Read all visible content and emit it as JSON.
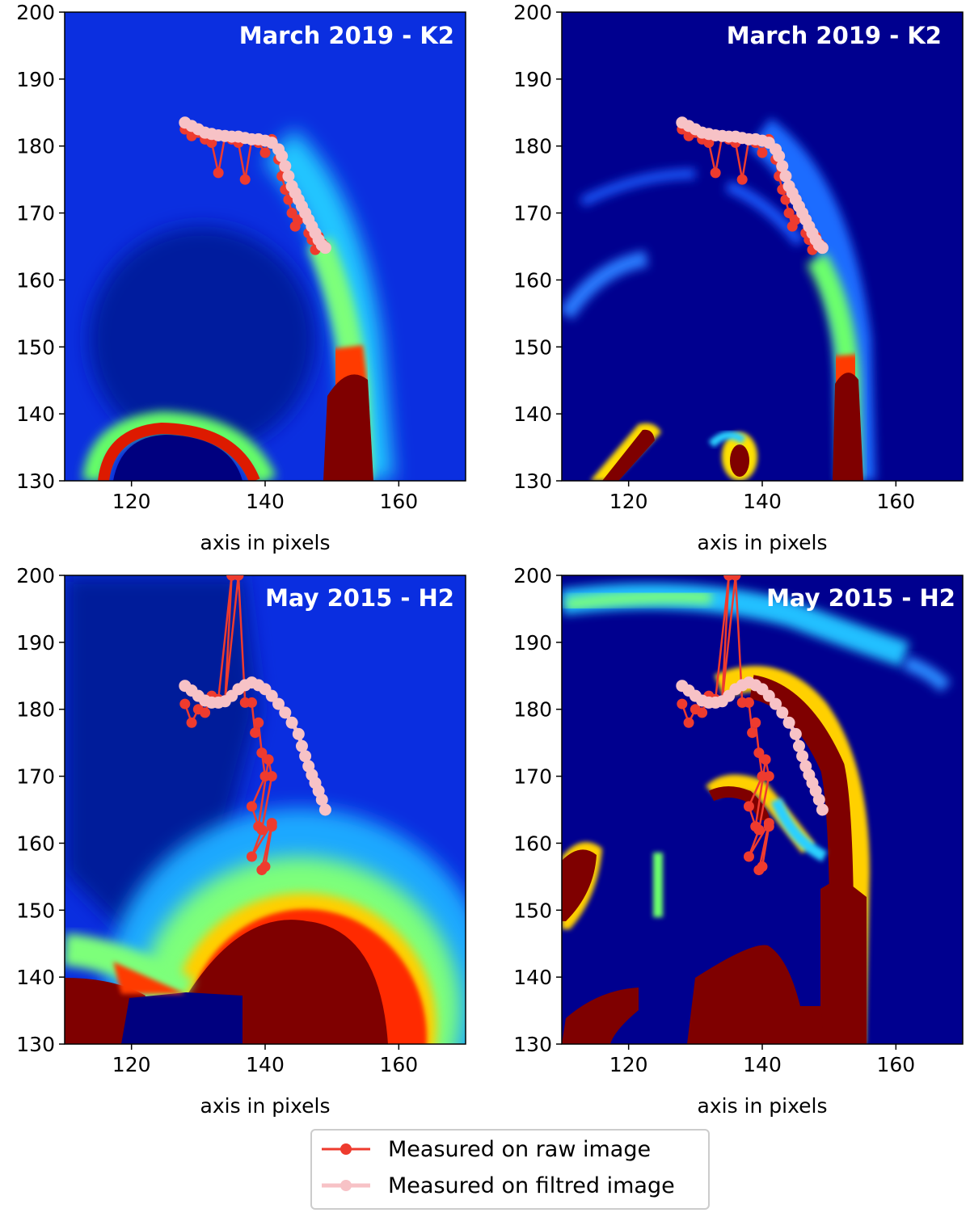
{
  "chart_data": [
    {
      "type": "heatmap",
      "title": "March 2019 - K2",
      "image": "raw",
      "xlabel": "axis in pixels",
      "xlim": [
        110,
        170
      ],
      "ylim": [
        130,
        200
      ],
      "xticks": [
        120,
        140,
        160
      ],
      "yticks": [
        130,
        140,
        150,
        160,
        170,
        180,
        190,
        200
      ]
    },
    {
      "type": "heatmap",
      "title": "March 2019 - K2",
      "image": "filtered",
      "xlabel": "axis in pixels",
      "xlim": [
        110,
        170
      ],
      "ylim": [
        130,
        200
      ],
      "xticks": [
        120,
        140,
        160
      ],
      "yticks": [
        130,
        140,
        150,
        160,
        170,
        180,
        190,
        200
      ]
    },
    {
      "type": "heatmap",
      "title": "May 2015 - H2",
      "image": "raw",
      "xlabel": "axis in pixels",
      "xlim": [
        110,
        170
      ],
      "ylim": [
        130,
        200
      ],
      "xticks": [
        120,
        140,
        160
      ],
      "yticks": [
        130,
        140,
        150,
        160,
        170,
        180,
        190,
        200
      ]
    },
    {
      "type": "heatmap",
      "title": "May 2015 - H2",
      "image": "filtered",
      "xlabel": "axis in pixels",
      "xlim": [
        110,
        170
      ],
      "ylim": [
        130,
        200
      ],
      "xticks": [
        120,
        140,
        160
      ],
      "yticks": [
        130,
        140,
        150,
        160,
        170,
        180,
        190,
        200
      ]
    }
  ],
  "series": {
    "march_2019": {
      "raw": [
        [
          128,
          182.5
        ],
        [
          129,
          181.5
        ],
        [
          130,
          182
        ],
        [
          131,
          181
        ],
        [
          132,
          180.5
        ],
        [
          133,
          176
        ],
        [
          134,
          181.5
        ],
        [
          135,
          181
        ],
        [
          136,
          180.5
        ],
        [
          137,
          175
        ],
        [
          138,
          181
        ],
        [
          139,
          180.5
        ],
        [
          140,
          179
        ],
        [
          141,
          181
        ],
        [
          142,
          178
        ],
        [
          142.5,
          175.5
        ],
        [
          143,
          173.5
        ],
        [
          143.5,
          172
        ],
        [
          144,
          170
        ],
        [
          144.5,
          168
        ],
        [
          145,
          169
        ],
        [
          146,
          169.5
        ],
        [
          146.5,
          167
        ],
        [
          147,
          166
        ],
        [
          147.5,
          164.5
        ],
        [
          148,
          166.5
        ],
        [
          148.5,
          165.5
        ],
        [
          149,
          165
        ]
      ],
      "filtered": [
        [
          128,
          183.5
        ],
        [
          129,
          183
        ],
        [
          130,
          182.5
        ],
        [
          131,
          182
        ],
        [
          132,
          181.8
        ],
        [
          133,
          181.6
        ],
        [
          134,
          181.5
        ],
        [
          135,
          181.4
        ],
        [
          136,
          181.4
        ],
        [
          137,
          181.2
        ],
        [
          138,
          181
        ],
        [
          139,
          181
        ],
        [
          140,
          180.8
        ],
        [
          141,
          180.5
        ],
        [
          142,
          179.5
        ],
        [
          142.5,
          178.5
        ],
        [
          143,
          177
        ],
        [
          143.5,
          175.5
        ],
        [
          144,
          174
        ],
        [
          144.5,
          173
        ],
        [
          145,
          172
        ],
        [
          145.5,
          171
        ],
        [
          146,
          170
        ],
        [
          146.5,
          169
        ],
        [
          147,
          168
        ],
        [
          147.5,
          167
        ],
        [
          148,
          166
        ],
        [
          148.5,
          165.2
        ],
        [
          149,
          164.8
        ]
      ]
    },
    "may_2015": {
      "raw": [
        [
          128,
          180.8
        ],
        [
          129,
          178
        ],
        [
          130,
          180
        ],
        [
          131,
          179.5
        ],
        [
          132,
          182
        ],
        [
          133,
          181.5
        ],
        [
          135,
          200
        ],
        [
          134,
          181.2
        ],
        [
          136,
          200
        ],
        [
          137,
          181
        ],
        [
          138,
          181
        ],
        [
          138.5,
          176.5
        ],
        [
          139,
          178
        ],
        [
          139.5,
          173.5
        ],
        [
          140,
          170
        ],
        [
          138,
          165.5
        ],
        [
          139,
          162.5
        ],
        [
          140.5,
          172.5
        ],
        [
          141,
          170
        ],
        [
          139.5,
          162
        ],
        [
          138,
          158
        ],
        [
          141,
          163
        ],
        [
          139.5,
          156
        ],
        [
          140,
          156.5
        ],
        [
          141,
          162.5
        ]
      ],
      "filtered": [
        [
          128,
          183.5
        ],
        [
          129,
          182.8
        ],
        [
          130,
          182
        ],
        [
          131,
          181.3
        ],
        [
          132,
          181
        ],
        [
          133,
          181
        ],
        [
          134,
          181.2
        ],
        [
          135,
          182
        ],
        [
          136,
          183
        ],
        [
          137,
          183.6
        ],
        [
          138,
          184
        ],
        [
          139,
          183.6
        ],
        [
          140,
          183
        ],
        [
          141,
          182
        ],
        [
          142,
          180.8
        ],
        [
          143,
          179.5
        ],
        [
          144,
          178
        ],
        [
          145,
          176.3
        ],
        [
          145.5,
          174.5
        ],
        [
          146,
          173
        ],
        [
          146.5,
          171.5
        ],
        [
          147,
          170.2
        ],
        [
          147.5,
          169
        ],
        [
          148,
          167.8
        ],
        [
          148.5,
          166.5
        ],
        [
          149,
          165
        ]
      ]
    }
  },
  "legend": [
    {
      "label": "Measured on raw image",
      "color": "#ee3b2e"
    },
    {
      "label": "Measured on filtred image",
      "color": "#f7c2c6"
    }
  ],
  "colors": {
    "raw": "#ee3b2e",
    "filtered": "#f7c2c6"
  }
}
